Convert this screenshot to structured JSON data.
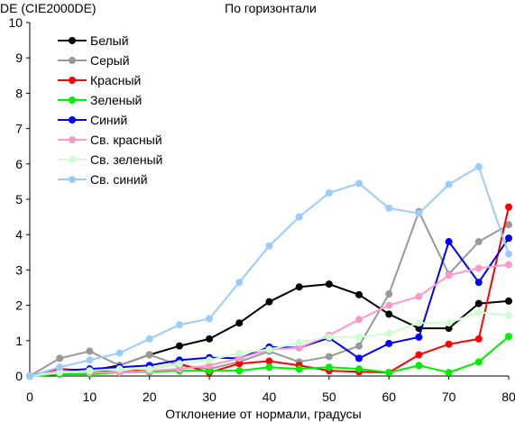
{
  "chart_data": {
    "type": "line",
    "title": "По горизонтали",
    "ylabel": "DE (CIE2000DE)",
    "xlabel": "Отклонение от нормали, градусы",
    "x": [
      0,
      5,
      10,
      15,
      20,
      25,
      30,
      35,
      40,
      45,
      50,
      55,
      60,
      65,
      70,
      75,
      80
    ],
    "xlim": [
      0,
      80
    ],
    "ylim": [
      0,
      10
    ],
    "x_ticks": [
      0,
      10,
      20,
      30,
      40,
      50,
      60,
      70,
      80
    ],
    "y_ticks": [
      0,
      1,
      2,
      3,
      4,
      5,
      6,
      7,
      8,
      9,
      10
    ],
    "grid": false,
    "legend_position": "top-left",
    "series": [
      {
        "name": "Белый",
        "color": "#000000",
        "values": [
          0,
          0.15,
          0.15,
          0.3,
          0.6,
          0.85,
          1.05,
          1.5,
          2.1,
          2.52,
          2.6,
          2.3,
          1.75,
          1.35,
          1.35,
          2.05,
          2.12
        ]
      },
      {
        "name": "Серый",
        "color": "#999999",
        "values": [
          0,
          0.5,
          0.7,
          0.3,
          0.6,
          0.3,
          0.2,
          0.4,
          0.7,
          0.4,
          0.55,
          0.85,
          2.32,
          4.65,
          2.88,
          3.8,
          4.28
        ]
      },
      {
        "name": "Красный",
        "color": "#ff0000",
        "values": [
          0,
          0.2,
          0.15,
          0.1,
          0.2,
          0.35,
          0.1,
          0.35,
          0.42,
          0.3,
          0.15,
          0.12,
          0.1,
          0.6,
          0.9,
          1.05,
          4.78
        ]
      },
      {
        "name": "Зеленый",
        "color": "#00ee00",
        "values": [
          0,
          0.05,
          0.05,
          0.1,
          0.12,
          0.15,
          0.15,
          0.15,
          0.25,
          0.2,
          0.25,
          0.2,
          0.1,
          0.3,
          0.1,
          0.4,
          1.12
        ]
      },
      {
        "name": "Синий",
        "color": "#0000ff",
        "values": [
          0,
          0.15,
          0.2,
          0.25,
          0.3,
          0.45,
          0.52,
          0.5,
          0.82,
          0.8,
          1.08,
          0.5,
          0.92,
          1.1,
          3.8,
          2.65,
          3.9
        ]
      },
      {
        "name": "Св. красный",
        "color": "#ff99cc",
        "values": [
          0,
          0.15,
          0.1,
          0.1,
          0.15,
          0.2,
          0.3,
          0.5,
          0.75,
          0.8,
          1.15,
          1.6,
          2.0,
          2.25,
          2.85,
          3.05,
          3.15
        ]
      },
      {
        "name": "Св. зеленый",
        "color": "#ccffcc",
        "values": [
          0,
          0.1,
          0.15,
          0.2,
          0.2,
          0.35,
          0.45,
          0.65,
          0.75,
          0.95,
          1.1,
          1.1,
          1.2,
          1.5,
          1.5,
          1.8,
          1.72
        ]
      },
      {
        "name": "Св. синий",
        "color": "#99ccff",
        "values": [
          0,
          0.25,
          0.45,
          0.65,
          1.05,
          1.45,
          1.62,
          2.65,
          3.68,
          4.5,
          5.18,
          5.45,
          4.75,
          4.6,
          5.42,
          5.92,
          3.45
        ]
      }
    ]
  }
}
